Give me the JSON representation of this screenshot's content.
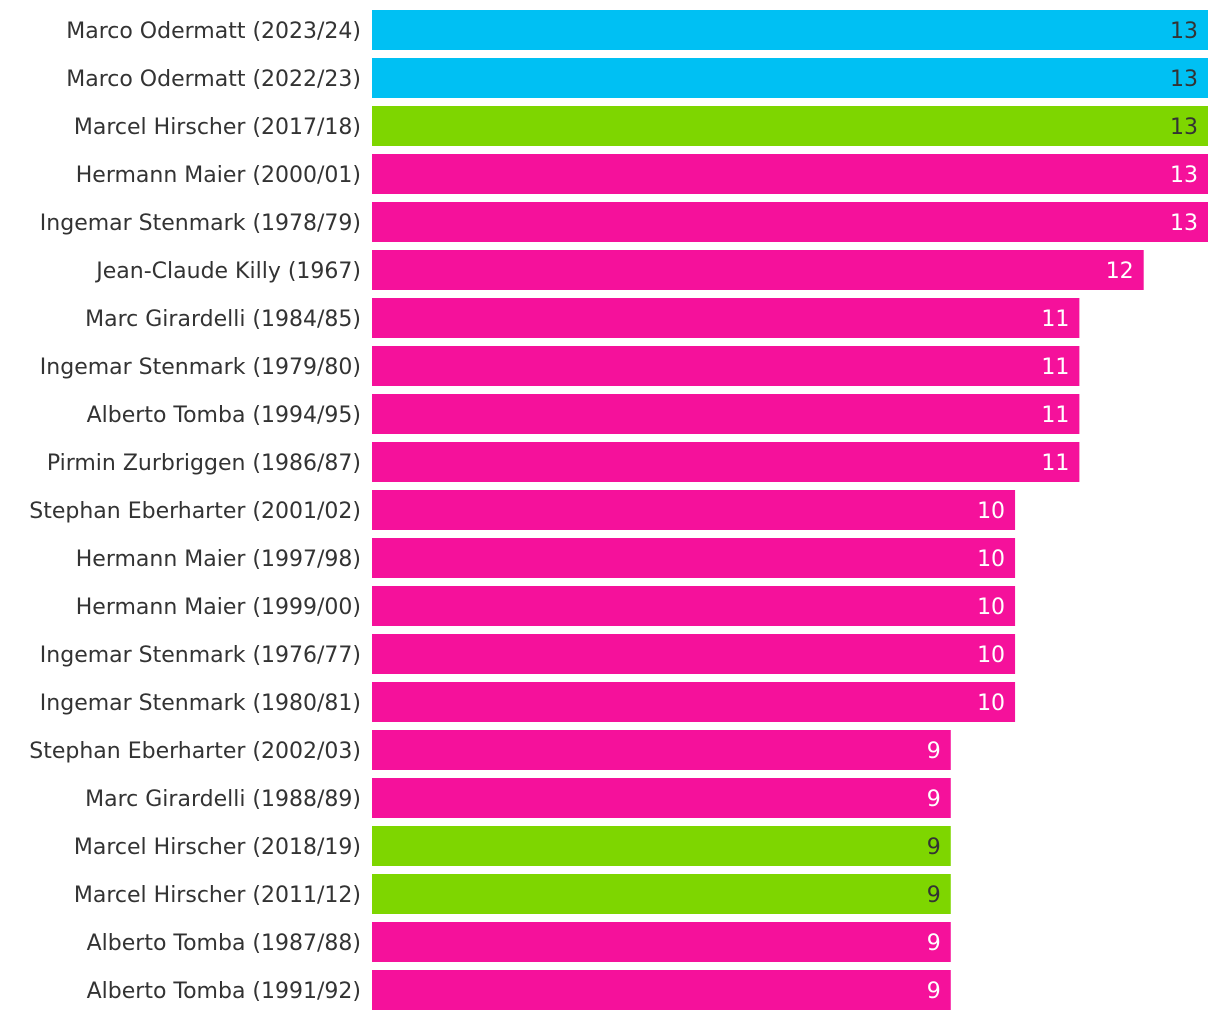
{
  "chart_data": {
    "type": "bar",
    "orientation": "horizontal",
    "title": "",
    "xlabel": "",
    "ylabel": "",
    "xlim": [
      0,
      13
    ],
    "grid": false,
    "legend": "none",
    "categories": [
      "Marco Odermatt (2023/24)",
      "Marco Odermatt (2022/23)",
      "Marcel Hirscher (2017/18)",
      "Hermann Maier (2000/01)",
      "Ingemar Stenmark (1978/79)",
      "Jean-Claude Killy (1967)",
      "Marc Girardelli (1984/85)",
      "Ingemar Stenmark (1979/80)",
      "Alberto Tomba (1994/95)",
      "Pirmin Zurbriggen (1986/87)",
      "Stephan Eberharter (2001/02)",
      "Hermann Maier (1997/98)",
      "Hermann Maier (1999/00)",
      "Ingemar Stenmark (1976/77)",
      "Ingemar Stenmark (1980/81)",
      "Stephan Eberharter (2002/03)",
      "Marc Girardelli (1988/89)",
      "Marcel Hirscher (2018/19)",
      "Marcel Hirscher (2011/12)",
      "Alberto Tomba (1987/88)",
      "Alberto Tomba (1991/92)"
    ],
    "values": [
      13,
      13,
      13,
      13,
      13,
      12,
      11,
      11,
      11,
      11,
      10,
      10,
      10,
      10,
      10,
      9,
      9,
      9,
      9,
      9,
      9
    ],
    "bar_colors": [
      "#00c0f3",
      "#00c0f3",
      "#7ed600",
      "#f5119b",
      "#f5119b",
      "#f5119b",
      "#f5119b",
      "#f5119b",
      "#f5119b",
      "#f5119b",
      "#f5119b",
      "#f5119b",
      "#f5119b",
      "#f5119b",
      "#f5119b",
      "#f5119b",
      "#f5119b",
      "#7ed600",
      "#7ed600",
      "#f5119b",
      "#f5119b"
    ],
    "value_label_colors": [
      "#333333",
      "#333333",
      "#333333",
      "#ffffff",
      "#ffffff",
      "#ffffff",
      "#ffffff",
      "#ffffff",
      "#ffffff",
      "#ffffff",
      "#ffffff",
      "#ffffff",
      "#ffffff",
      "#ffffff",
      "#ffffff",
      "#ffffff",
      "#ffffff",
      "#333333",
      "#333333",
      "#ffffff",
      "#ffffff"
    ],
    "value_labels": [
      "13",
      "13",
      "13",
      "13",
      "13",
      "12",
      "11",
      "11",
      "11",
      "11",
      "10",
      "10",
      "10",
      "10",
      "10",
      "9",
      "9",
      "9",
      "9",
      "9",
      "9"
    ]
  }
}
